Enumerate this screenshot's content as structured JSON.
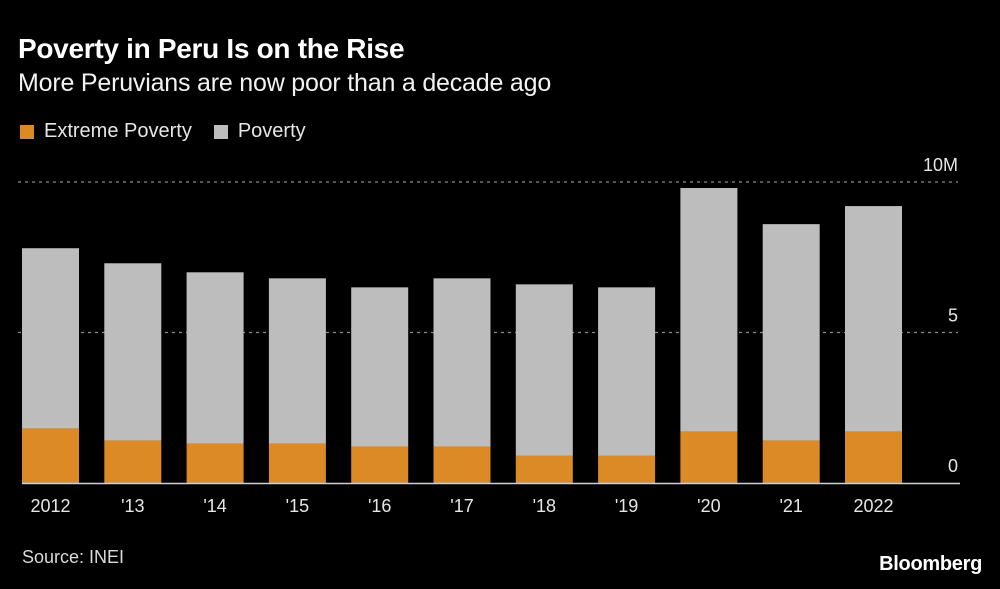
{
  "header": {
    "title": "Poverty in Peru Is on the Rise",
    "subtitle": "More Peruvians are now poor than a decade ago"
  },
  "legend": [
    {
      "label": "Extreme Poverty",
      "color": "#dc8a26"
    },
    {
      "label": "Poverty",
      "color": "#bdbdbd"
    }
  ],
  "footer": {
    "source": "Source: INEI",
    "brand": "Bloomberg"
  },
  "chart_data": {
    "type": "bar",
    "stacked": true,
    "title": "Poverty in Peru Is on the Rise",
    "subtitle": "More Peruvians are now poor than a decade ago",
    "xlabel": "",
    "ylabel": "",
    "unit": "millions of people",
    "categories": [
      "2012",
      "'13",
      "'14",
      "'15",
      "'16",
      "'17",
      "'18",
      "'19",
      "'20",
      "'21",
      "2022"
    ],
    "series": [
      {
        "name": "Extreme Poverty",
        "color": "#dc8a26",
        "values": [
          1.8,
          1.4,
          1.3,
          1.3,
          1.2,
          1.2,
          0.9,
          0.9,
          1.7,
          1.4,
          1.7
        ]
      },
      {
        "name": "Poverty",
        "color": "#bdbdbd",
        "values": [
          7.8,
          7.3,
          7.0,
          6.8,
          6.5,
          6.8,
          6.6,
          6.5,
          9.8,
          8.6,
          9.2
        ],
        "note": "total poverty including extreme poverty (bar total height)"
      }
    ],
    "ylim": [
      0,
      10
    ],
    "yticks": [
      {
        "value": 0,
        "label": "0"
      },
      {
        "value": 5,
        "label": "5"
      },
      {
        "value": 10,
        "label": "10M"
      }
    ],
    "grid": true,
    "legend_position": "top-left",
    "y_axis_position": "right"
  }
}
